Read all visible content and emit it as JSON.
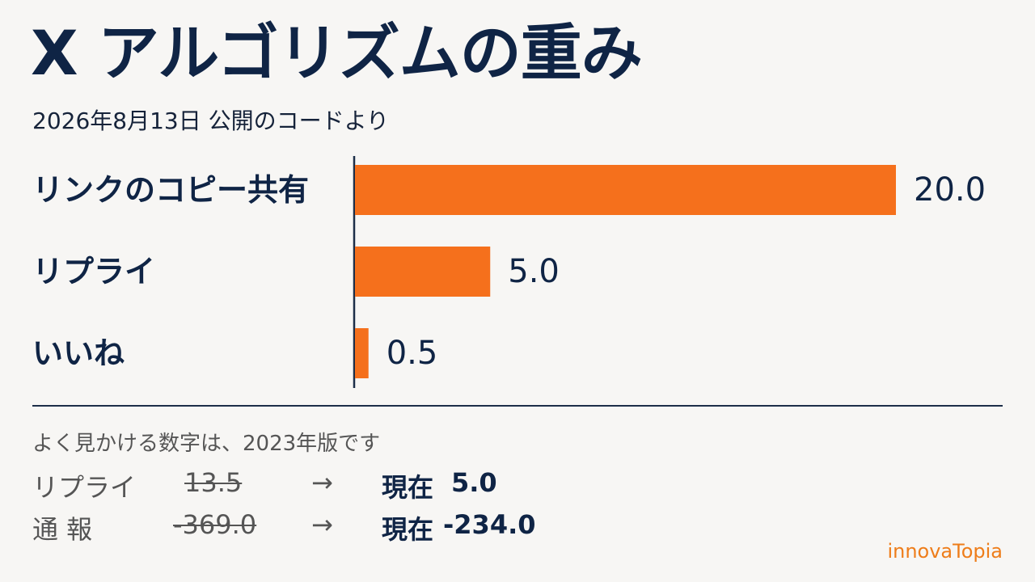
{
  "title": "X アルゴリズムの重み",
  "subtitle": "2026年8月13日 公開のコードより",
  "chart_data": {
    "type": "bar",
    "orientation": "horizontal",
    "categories": [
      "リンクのコピー共有",
      "リプライ",
      "いいね"
    ],
    "values": [
      20.0,
      5.0,
      0.5
    ],
    "value_labels": [
      "20.0",
      "5.0",
      "0.5"
    ],
    "bar_color": "#f5701c",
    "xlim": [
      0,
      20.0
    ],
    "grid": false,
    "title": "X アルゴリズムの重み",
    "subtitle": "2026年8月13日 公開のコードより"
  },
  "note": "よく見かける数字は、2023年版です",
  "comparisons": [
    {
      "name": "リプライ",
      "old": "13.5",
      "arrow": "→",
      "now_label": "現在",
      "new": "5.0"
    },
    {
      "name": "通 報",
      "old": "-369.0",
      "arrow": "→",
      "now_label": "現在",
      "new": "-234.0"
    }
  ],
  "brand": "innovaTopia",
  "colors": {
    "text": "#0f2445",
    "accent": "#f5701c",
    "brand": "#ee7d1a",
    "background": "#f7f6f4"
  }
}
